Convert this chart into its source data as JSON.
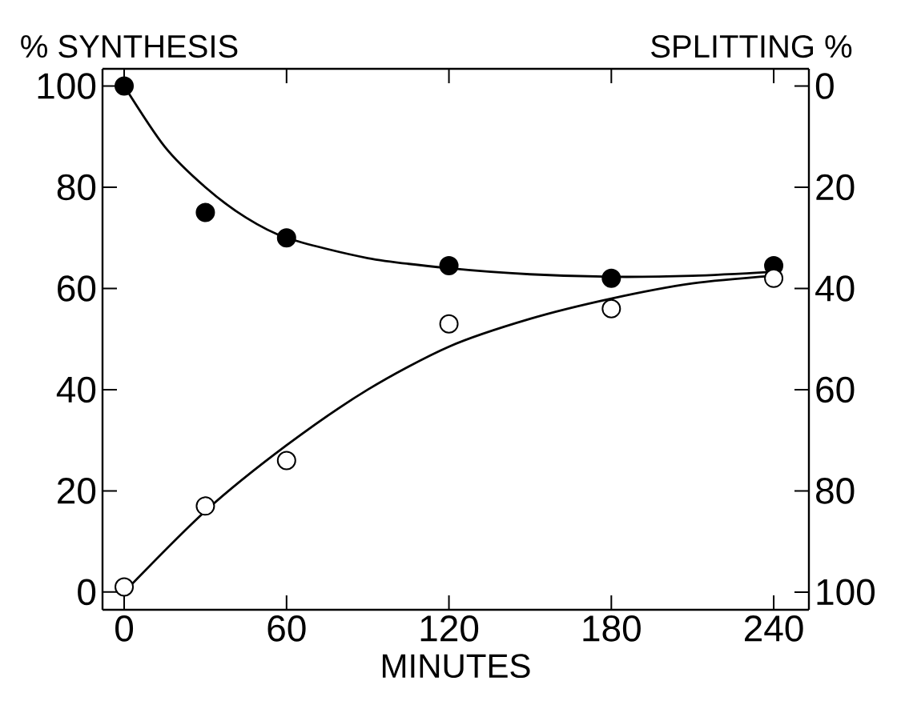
{
  "chart_data": {
    "type": "scatter",
    "ylabel": "% SYNTHESIS",
    "y2label": "SPLITTING %",
    "xlabel": "MINUTES",
    "xlim": [
      -8,
      253
    ],
    "xticks": [
      0,
      60,
      120,
      180,
      240
    ],
    "ylim": [
      -3.5,
      103.4
    ],
    "yticks": [
      0,
      20,
      40,
      60,
      80,
      100
    ],
    "y2lim": [
      103.5,
      -3.4
    ],
    "y2ticks": [
      0,
      20,
      40,
      60,
      80,
      100
    ],
    "grid": false,
    "series": [
      {
        "type": "line",
        "color": "#000000",
        "marker": "none",
        "line_style": "solid",
        "x": [
          0,
          15,
          30,
          45,
          60,
          90,
          120,
          150,
          180,
          210,
          240
        ],
        "values": [
          100,
          88,
          80,
          74,
          70,
          66,
          64,
          62.8,
          62.3,
          62.5,
          63.3
        ]
      },
      {
        "type": "line",
        "axis": "y2",
        "color": "#000000",
        "marker": "none",
        "line_style": "solid",
        "x": [
          0,
          30,
          60,
          90,
          120,
          150,
          180,
          210,
          240
        ],
        "values": [
          100,
          84,
          71,
          60,
          51.5,
          46,
          42,
          39,
          37.5
        ]
      },
      {
        "type": "scatter",
        "color": "#000000",
        "marker": "circle",
        "x": [
          0,
          30,
          60,
          120,
          180,
          240
        ],
        "values": [
          100,
          75,
          70,
          64.5,
          62,
          64.5
        ]
      },
      {
        "type": "scatter",
        "axis": "y2",
        "color": "#ffffff",
        "marker": "circle",
        "x": [
          0,
          30,
          60,
          120,
          180,
          240
        ],
        "values": [
          99,
          83,
          74,
          47,
          44,
          38
        ]
      }
    ]
  }
}
